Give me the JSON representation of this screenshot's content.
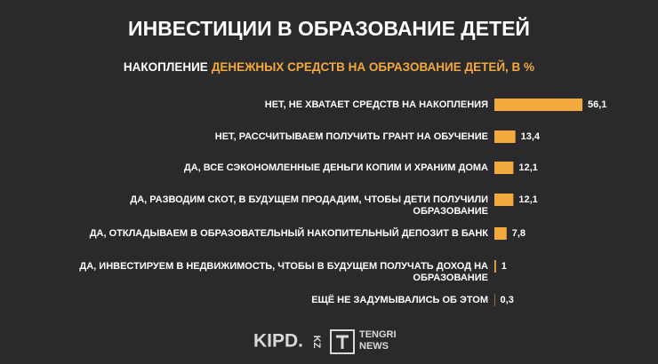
{
  "chart_data": {
    "type": "hbar",
    "title": "ИНВЕСТИЦИИ В ОБРАЗОВАНИЕ ДЕТЕЙ",
    "subtitle": [
      "НАКОПЛЕНИЕ",
      "ДЕНЕЖНЫХ СРЕДСТВ НА ОБРАЗОВАНИЕ ДЕТЕЙ, В %"
    ],
    "categories": [
      [
        "НЕТ, НЕ ХВАТАЕТ СРЕДСТВ НА НАКОПЛЕНИЯ"
      ],
      [
        "НЕТ, РАССЧИТЫВАЕМ ПОЛУЧИТЬ ГРАНТ НА ОБУЧЕНИЕ"
      ],
      [
        "ДА, ВСЕ СЭКОНОМЛЕННЫЕ ДЕНЬГИ КОПИМ И ХРАНИМ ДОМА"
      ],
      [
        "ДА, РАЗВОДИМ СКОТ, В БУДУЩЕМ ПРОДАДИМ, ЧТОБЫ ДЕТИ ПОЛУЧИЛИ",
        "ОБРАЗОВАНИЕ"
      ],
      [
        "ДА, ОТКЛАДЫВАЕМ В ОБРАЗОВАТЕЛЬНЫЙ НАКОПИТЕЛЬНЫЙ ДЕПОЗИТ В БАНК"
      ],
      [
        "ДА, ИНВЕСТИРУЕМ В НЕДВИЖИМОСТЬ, ЧТОБЫ В БУДУЩЕМ ПОЛУЧАТЬ ДОХОД НА",
        "ОБРАЗОВАНИЕ"
      ],
      [
        "ЕЩЁ НЕ ЗАДУМЫВАЛИСЬ ОБ ЭТОМ"
      ]
    ],
    "values": [
      56.1,
      13.4,
      12.1,
      12.1,
      7.8,
      1,
      0.3
    ],
    "value_labels": [
      "56,1",
      "13,4",
      "12,1",
      "12,1",
      "7,8",
      "1",
      "0,3"
    ],
    "color": "#f2a93b"
  },
  "footer": {
    "logo1": "KIPD.",
    "logo1_suffix": "KZ",
    "logo2": [
      "TENGRI",
      "NEWS"
    ]
  }
}
